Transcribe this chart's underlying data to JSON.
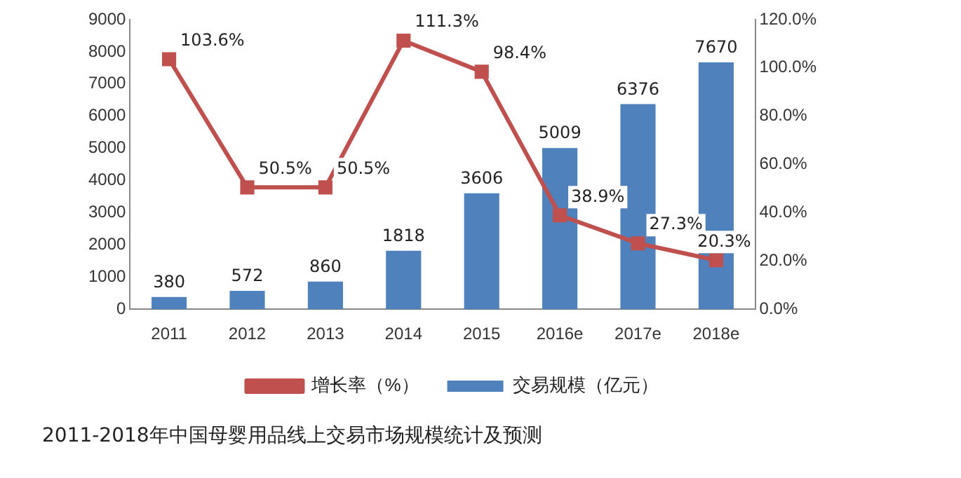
{
  "chart_data": {
    "type": "bar",
    "categories": [
      "2011",
      "2012",
      "2013",
      "2014",
      "2015",
      "2016e",
      "2017e",
      "2018e"
    ],
    "series": [
      {
        "name": "交易规模（亿元）",
        "color": "#4f81bd",
        "values": [
          380,
          572,
          860,
          1818,
          3606,
          5009,
          6376,
          7670
        ],
        "value_labels": [
          "380",
          "572",
          "860",
          "1818",
          "3606",
          "5009",
          "6376",
          "7670"
        ]
      },
      {
        "name": "增长率（%）",
        "type": "line",
        "axis": "y2",
        "color": "#c0504d",
        "marker": "square",
        "values": [
          103.6,
          50.5,
          50.5,
          111.3,
          98.4,
          38.9,
          27.3,
          20.3
        ],
        "value_labels": [
          "103.6%",
          "50.5%",
          "50.5%",
          "111.3%",
          "98.4%",
          "38.9%",
          "27.3%",
          "20.3%"
        ]
      }
    ],
    "ylim": [
      0,
      9000
    ],
    "yticks": [
      0,
      1000,
      2000,
      3000,
      4000,
      5000,
      6000,
      7000,
      8000,
      9000
    ],
    "y2lim": [
      0,
      120
    ],
    "y2ticks": [
      {
        "value": 0,
        "label": "0.0%"
      },
      {
        "value": 20,
        "label": "20.0%"
      },
      {
        "value": 40,
        "label": "40.0%"
      },
      {
        "value": 60,
        "label": "60.0%"
      },
      {
        "value": 80,
        "label": "80.0%"
      },
      {
        "value": 100,
        "label": "100.0%"
      },
      {
        "value": 120,
        "label": "120.0%"
      }
    ],
    "grid": false,
    "legend": "bottom",
    "annotations": [
      "2011-2018年中国母婴用品线上交易市场规模统计及预测"
    ]
  }
}
